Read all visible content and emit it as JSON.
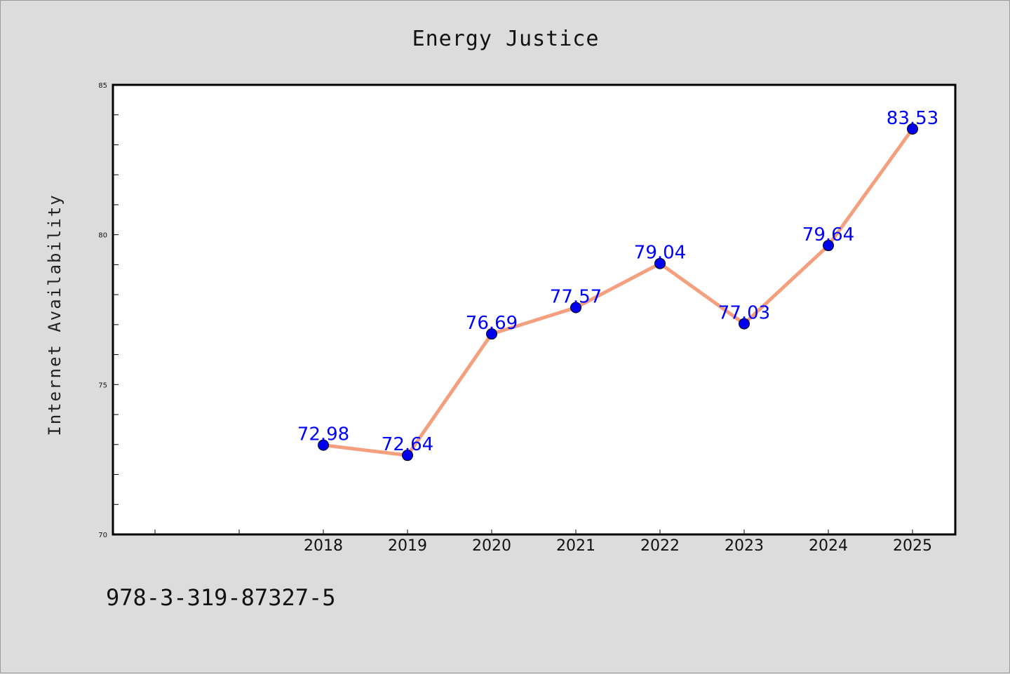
{
  "chart_data": {
    "type": "line",
    "title": "Energy Justice",
    "xlabel": "",
    "ylabel": "Internet Availability",
    "ylim": [
      70,
      85
    ],
    "yticks": [
      70,
      75,
      80,
      85
    ],
    "categories": [
      "2018",
      "2019",
      "2020",
      "2021",
      "2022",
      "2023",
      "2024",
      "2025"
    ],
    "series": [
      {
        "values": [
          72.98,
          72.64,
          76.69,
          77.57,
          79.04,
          77.03,
          79.64,
          83.53
        ]
      }
    ],
    "data_labels": [
      "72.98",
      "72.64",
      "76.69",
      "77.57",
      "79.04",
      "77.03",
      "79.64",
      "83.53"
    ],
    "grid": false,
    "line_color": "#f4a07e",
    "marker_color": "#0000ee",
    "label_color": "#0000ff",
    "background_color": "#dcdcdc",
    "plot_background": "#ffffff"
  },
  "footer": {
    "isbn": "978-3-319-87327-5"
  }
}
